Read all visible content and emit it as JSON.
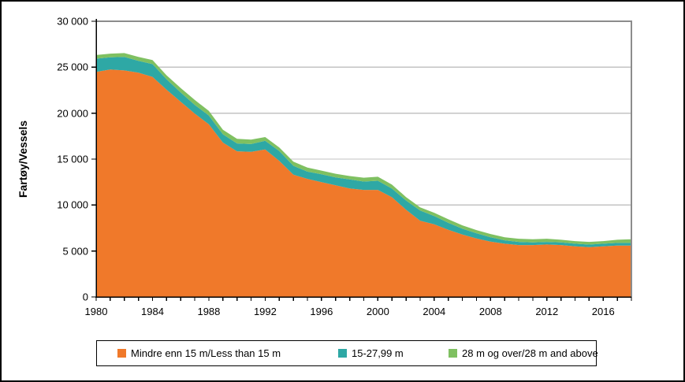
{
  "chart_data": {
    "type": "area",
    "stacked": true,
    "title": "",
    "xlabel": "",
    "ylabel": "Fartøy/Vessels",
    "ylim": [
      0,
      30000
    ],
    "y_tick_step": 5000,
    "grid": true,
    "legend_position": "bottom",
    "y_tick_labels": [
      "0",
      "5 000",
      "10 000",
      "15 000",
      "20 000",
      "25 000",
      "30 000"
    ],
    "x_tick_labels": [
      "1980",
      "1984",
      "1988",
      "1992",
      "1996",
      "2000",
      "2004",
      "2008",
      "2012",
      "2016"
    ],
    "years": [
      1980,
      1981,
      1982,
      1983,
      1984,
      1985,
      1986,
      1987,
      1988,
      1989,
      1990,
      1991,
      1992,
      1993,
      1994,
      1995,
      1996,
      1997,
      1998,
      1999,
      2000,
      2001,
      2002,
      2003,
      2004,
      2005,
      2006,
      2007,
      2008,
      2009,
      2010,
      2011,
      2012,
      2013,
      2014,
      2015,
      2016,
      2017,
      2018
    ],
    "series": [
      {
        "name": "Mindre enn 15 m/Less than 15 m",
        "color": "#F0792A",
        "values": [
          24500,
          24750,
          24650,
          24400,
          23950,
          22550,
          21250,
          19950,
          18800,
          16800,
          15850,
          15800,
          16050,
          14800,
          13300,
          12850,
          12500,
          12150,
          11800,
          11650,
          11650,
          10850,
          9500,
          8300,
          7900,
          7300,
          6790,
          6360,
          6020,
          5790,
          5650,
          5650,
          5710,
          5650,
          5510,
          5420,
          5510,
          5590,
          5590
        ]
      },
      {
        "name": "15-27,99 m",
        "color": "#2EA8A5",
        "values": [
          1430,
          1330,
          1470,
          1290,
          1390,
          1140,
          1000,
          950,
          950,
          900,
          860,
          840,
          950,
          1070,
          970,
          790,
          850,
          860,
          990,
          910,
          990,
          940,
          1000,
          1100,
          910,
          770,
          630,
          570,
          480,
          370,
          340,
          280,
          280,
          280,
          280,
          280,
          280,
          290,
          290
        ]
      },
      {
        "name": "28 m og over/28 m and above",
        "color": "#7FC061",
        "values": [
          390,
          400,
          420,
          430,
          440,
          430,
          490,
          540,
          500,
          500,
          490,
          490,
          400,
          390,
          450,
          430,
          400,
          400,
          370,
          420,
          440,
          430,
          370,
          350,
          350,
          380,
          370,
          350,
          350,
          340,
          340,
          350,
          340,
          290,
          290,
          290,
          290,
          340,
          400
        ]
      }
    ]
  },
  "colors": {
    "gridline": "#C3C3C3",
    "plot_border": "#8C8C8C",
    "axis": "#000000",
    "background": "#FFFFFF",
    "outer_border": "#000000"
  }
}
